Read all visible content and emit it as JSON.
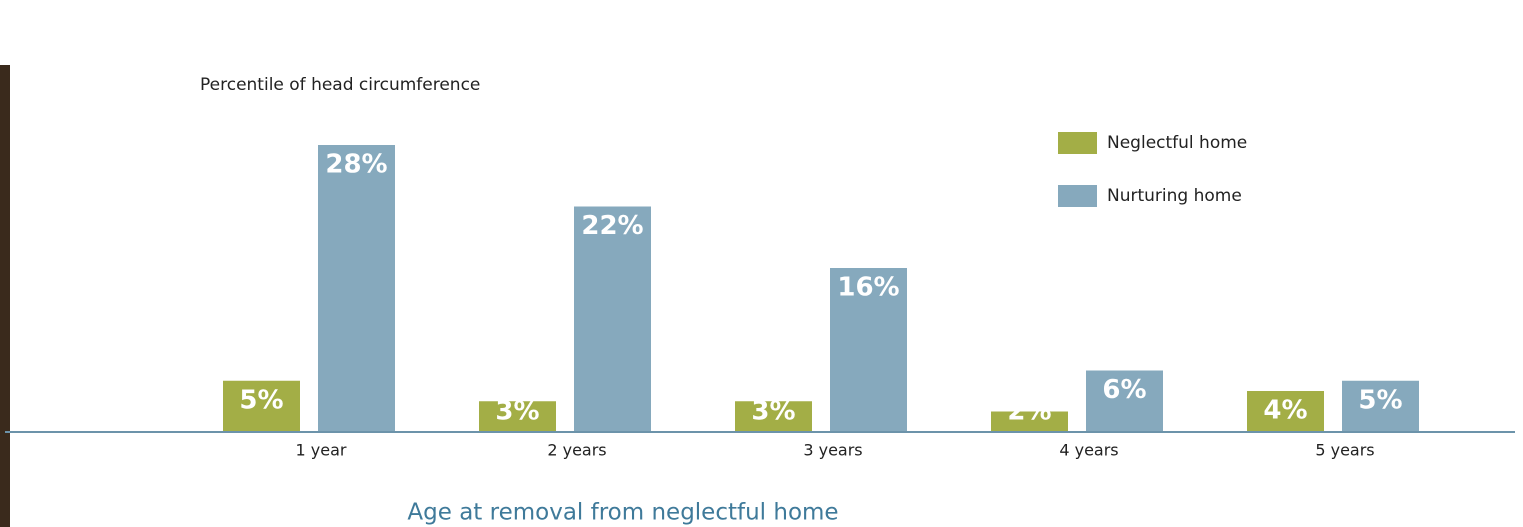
{
  "chart_data": {
    "type": "bar",
    "title": "Percentile of head circumference",
    "x_label": "Age at removal from neglectful home",
    "categories": [
      "1 year",
      "2 years",
      "3 years",
      "4 years",
      "5 years"
    ],
    "series": [
      {
        "name": "Neglectful home",
        "color": "#a3ae46",
        "values": [
          5,
          3,
          3,
          2,
          4
        ],
        "value_labels": [
          "5%",
          "3%",
          "3%",
          "2%",
          "4%"
        ]
      },
      {
        "name": "Nurturing home",
        "color": "#86a9bd",
        "values": [
          28,
          22,
          16,
          6,
          5
        ],
        "value_labels": [
          "28%",
          "22%",
          "16%",
          "6%",
          "5%"
        ]
      }
    ],
    "ylim": [
      0,
      28
    ],
    "legend": "upper right"
  }
}
